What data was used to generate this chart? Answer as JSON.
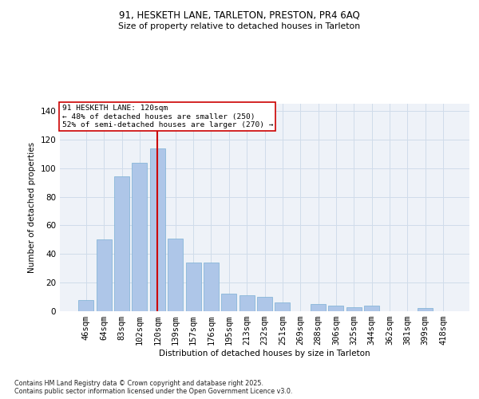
{
  "title1": "91, HESKETH LANE, TARLETON, PRESTON, PR4 6AQ",
  "title2": "Size of property relative to detached houses in Tarleton",
  "xlabel": "Distribution of detached houses by size in Tarleton",
  "ylabel": "Number of detached properties",
  "categories": [
    "46sqm",
    "64sqm",
    "83sqm",
    "102sqm",
    "120sqm",
    "139sqm",
    "157sqm",
    "176sqm",
    "195sqm",
    "213sqm",
    "232sqm",
    "251sqm",
    "269sqm",
    "288sqm",
    "306sqm",
    "325sqm",
    "344sqm",
    "362sqm",
    "381sqm",
    "399sqm",
    "418sqm"
  ],
  "values": [
    8,
    50,
    94,
    104,
    114,
    51,
    34,
    34,
    12,
    11,
    10,
    6,
    0,
    5,
    4,
    3,
    4,
    0,
    0,
    2,
    0
  ],
  "bar_color": "#aec6e8",
  "bar_edge_color": "#7aafd4",
  "vline_x_index": 4,
  "vline_color": "#cc0000",
  "annotation_text": "91 HESKETH LANE: 120sqm\n← 48% of detached houses are smaller (250)\n52% of semi-detached houses are larger (270) →",
  "annotation_box_color": "#ffffff",
  "annotation_box_edge": "#cc0000",
  "ylim": [
    0,
    145
  ],
  "yticks": [
    0,
    20,
    40,
    60,
    80,
    100,
    120,
    140
  ],
  "grid_color": "#d0dcea",
  "bg_color": "#eef2f8",
  "footer": "Contains HM Land Registry data © Crown copyright and database right 2025.\nContains public sector information licensed under the Open Government Licence v3.0.",
  "fig_bg": "#ffffff"
}
